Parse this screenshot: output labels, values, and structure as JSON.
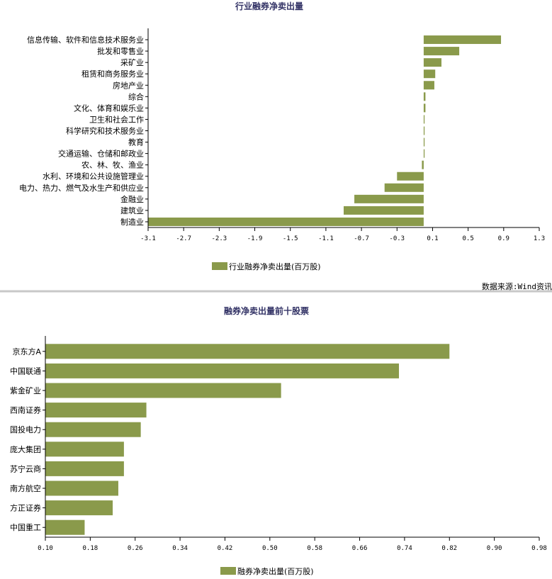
{
  "colors": {
    "bar": "#8a9a4b",
    "title": "#333366",
    "axis": "#000000",
    "separator": "#c8c8c8"
  },
  "source_note": "数据来源:Wind资讯",
  "chart_data": [
    {
      "type": "bar",
      "orientation": "horizontal",
      "title": "行业融券净卖出量",
      "categories": [
        "信息传输、软件和信息技术服务业",
        "批发和零售业",
        "采矿业",
        "租赁和商务服务业",
        "房地产业",
        "综合",
        "文化、体育和娱乐业",
        "卫生和社会工作",
        "科学研究和技术服务业",
        "教育",
        "交通运输、仓储和邮政业",
        "农、林、牧、渔业",
        "水利、环境和公共设施管理业",
        "电力、热力、燃气及水生产和供应业",
        "金融业",
        "建筑业",
        "制造业"
      ],
      "series": [
        {
          "name": "行业融券净卖出量(百万股)",
          "values": [
            0.87,
            0.4,
            0.2,
            0.13,
            0.12,
            0.02,
            0.02,
            0.01,
            0.01,
            0.01,
            0.01,
            -0.02,
            -0.3,
            -0.44,
            -0.78,
            -0.9,
            -3.1
          ]
        }
      ],
      "xlim": [
        -3.1,
        1.3
      ],
      "xticks": [
        "-3.1",
        "-2.7",
        "-2.3",
        "-1.9",
        "-1.5",
        "-1.1",
        "-0.7",
        "-0.3",
        "0.1",
        "0.5",
        "0.9",
        "1.3"
      ],
      "legend_position": "bottom",
      "grid": false
    },
    {
      "type": "bar",
      "orientation": "horizontal",
      "title": "融券净卖出量前十股票",
      "categories": [
        "京东方A",
        "中国联通",
        "紫金矿业",
        "西南证券",
        "国投电力",
        "庞大集团",
        "苏宁云商",
        "南方航空",
        "方正证券",
        "中国重工"
      ],
      "series": [
        {
          "name": "融券净卖出量(百万股)",
          "values": [
            0.82,
            0.73,
            0.52,
            0.28,
            0.27,
            0.24,
            0.24,
            0.23,
            0.22,
            0.17
          ]
        }
      ],
      "xlim": [
        0.1,
        0.98
      ],
      "xticks": [
        "0.10",
        "0.18",
        "0.26",
        "0.34",
        "0.42",
        "0.50",
        "0.58",
        "0.66",
        "0.74",
        "0.82",
        "0.90",
        "0.98"
      ],
      "legend_position": "bottom",
      "grid": false
    }
  ]
}
